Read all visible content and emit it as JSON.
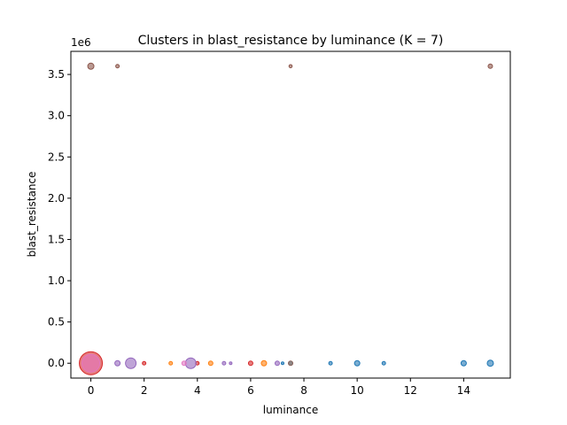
{
  "chart_data": {
    "type": "scatter",
    "title": "Clusters in blast_resistance by luminance (K = 7)",
    "xlabel": "luminance",
    "ylabel": "blast_resistance",
    "y_offset_label": "1e6",
    "xlim": [
      -0.75,
      15.75
    ],
    "ylim": [
      -180000,
      3780000
    ],
    "x_ticks": [
      0,
      2,
      4,
      6,
      8,
      10,
      12,
      14
    ],
    "x_tick_labels": [
      "0",
      "2",
      "4",
      "6",
      "8",
      "10",
      "12",
      "14"
    ],
    "y_ticks": [
      0,
      500000,
      1000000,
      1500000,
      2000000,
      2500000,
      3000000,
      3500000
    ],
    "y_tick_labels": [
      "0.0",
      "0.5",
      "1.0",
      "1.5",
      "2.0",
      "2.5",
      "3.0",
      "3.5"
    ],
    "grid": false,
    "legend": "none",
    "series": [
      {
        "color": "#1f77b4",
        "points": [
          {
            "x": 9,
            "y": 0,
            "s": 2
          },
          {
            "x": 10,
            "y": 0,
            "s": 3
          },
          {
            "x": 11,
            "y": 0,
            "s": 2
          },
          {
            "x": 14,
            "y": 0,
            "s": 3
          },
          {
            "x": 15,
            "y": 0,
            "s": 3.5
          },
          {
            "x": 7.2,
            "y": 0,
            "s": 1.5
          }
        ]
      },
      {
        "color": "#ff7f0e",
        "points": [
          {
            "x": 3,
            "y": 0,
            "s": 2
          },
          {
            "x": 4.5,
            "y": 0,
            "s": 2.5
          },
          {
            "x": 6.5,
            "y": 0,
            "s": 3
          }
        ]
      },
      {
        "color": "#d62728",
        "points": [
          {
            "x": 0,
            "y": 0,
            "s": 13
          },
          {
            "x": 2,
            "y": 0,
            "s": 2
          },
          {
            "x": 6,
            "y": 0,
            "s": 2.5
          },
          {
            "x": 4,
            "y": 0,
            "s": 2
          }
        ]
      },
      {
        "color": "#9467bd",
        "points": [
          {
            "x": 1.5,
            "y": 0,
            "s": 6
          },
          {
            "x": 3.75,
            "y": 0,
            "s": 6
          },
          {
            "x": 1,
            "y": 0,
            "s": 3
          },
          {
            "x": 5,
            "y": 0,
            "s": 2
          },
          {
            "x": 5.25,
            "y": 0,
            "s": 1.5
          },
          {
            "x": 7,
            "y": 0,
            "s": 2.5
          }
        ]
      },
      {
        "color": "#8c564b",
        "points": [
          {
            "x": 0,
            "y": 3600000,
            "s": 3.5
          },
          {
            "x": 1,
            "y": 3600000,
            "s": 2
          },
          {
            "x": 7.5,
            "y": 3600000,
            "s": 1.8
          },
          {
            "x": 15,
            "y": 3600000,
            "s": 2.5
          },
          {
            "x": 7.5,
            "y": 0,
            "s": 2.5
          }
        ]
      },
      {
        "color": "#e377c2",
        "points": [
          {
            "x": 0,
            "y": 0,
            "s": 10
          },
          {
            "x": 3.5,
            "y": 0,
            "s": 2.5
          }
        ]
      },
      {
        "color": "#7f7f7f",
        "points": [
          {
            "x": 7.5,
            "y": 0,
            "s": 1.8
          }
        ]
      }
    ]
  }
}
